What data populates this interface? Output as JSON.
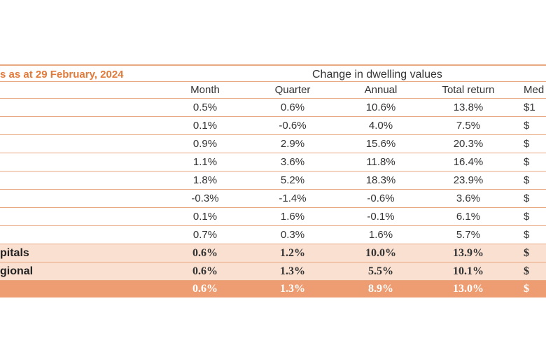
{
  "table": {
    "title": "s as at 29 February, 2024",
    "group_header": "Change in dwelling values",
    "columns": [
      "Month",
      "Quarter",
      "Annual",
      "Total return",
      "Med"
    ],
    "rows": [
      {
        "label": "",
        "values": [
          "0.5%",
          "0.6%",
          "10.6%",
          "13.8%",
          "$1"
        ]
      },
      {
        "label": "",
        "values": [
          "0.1%",
          "-0.6%",
          "4.0%",
          "7.5%",
          "$"
        ]
      },
      {
        "label": "",
        "values": [
          "0.9%",
          "2.9%",
          "15.6%",
          "20.3%",
          "$"
        ]
      },
      {
        "label": "",
        "values": [
          "1.1%",
          "3.6%",
          "11.8%",
          "16.4%",
          "$"
        ]
      },
      {
        "label": "",
        "values": [
          "1.8%",
          "5.2%",
          "18.3%",
          "23.9%",
          "$"
        ]
      },
      {
        "label": "",
        "values": [
          "-0.3%",
          "-1.4%",
          "-0.6%",
          "3.6%",
          "$"
        ]
      },
      {
        "label": "",
        "values": [
          "0.1%",
          "1.6%",
          "-0.1%",
          "6.1%",
          "$"
        ]
      },
      {
        "label": "",
        "values": [
          "0.7%",
          "0.3%",
          "1.6%",
          "5.7%",
          "$"
        ]
      }
    ],
    "aggregates": [
      {
        "label": "pitals",
        "values": [
          "0.6%",
          "1.2%",
          "10.0%",
          "13.9%",
          "$"
        ]
      },
      {
        "label": "gional",
        "values": [
          "0.6%",
          "1.3%",
          "5.5%",
          "10.1%",
          "$"
        ]
      }
    ],
    "national": {
      "label": "",
      "values": [
        "0.6%",
        "1.3%",
        "8.9%",
        "13.0%",
        "$"
      ]
    }
  }
}
